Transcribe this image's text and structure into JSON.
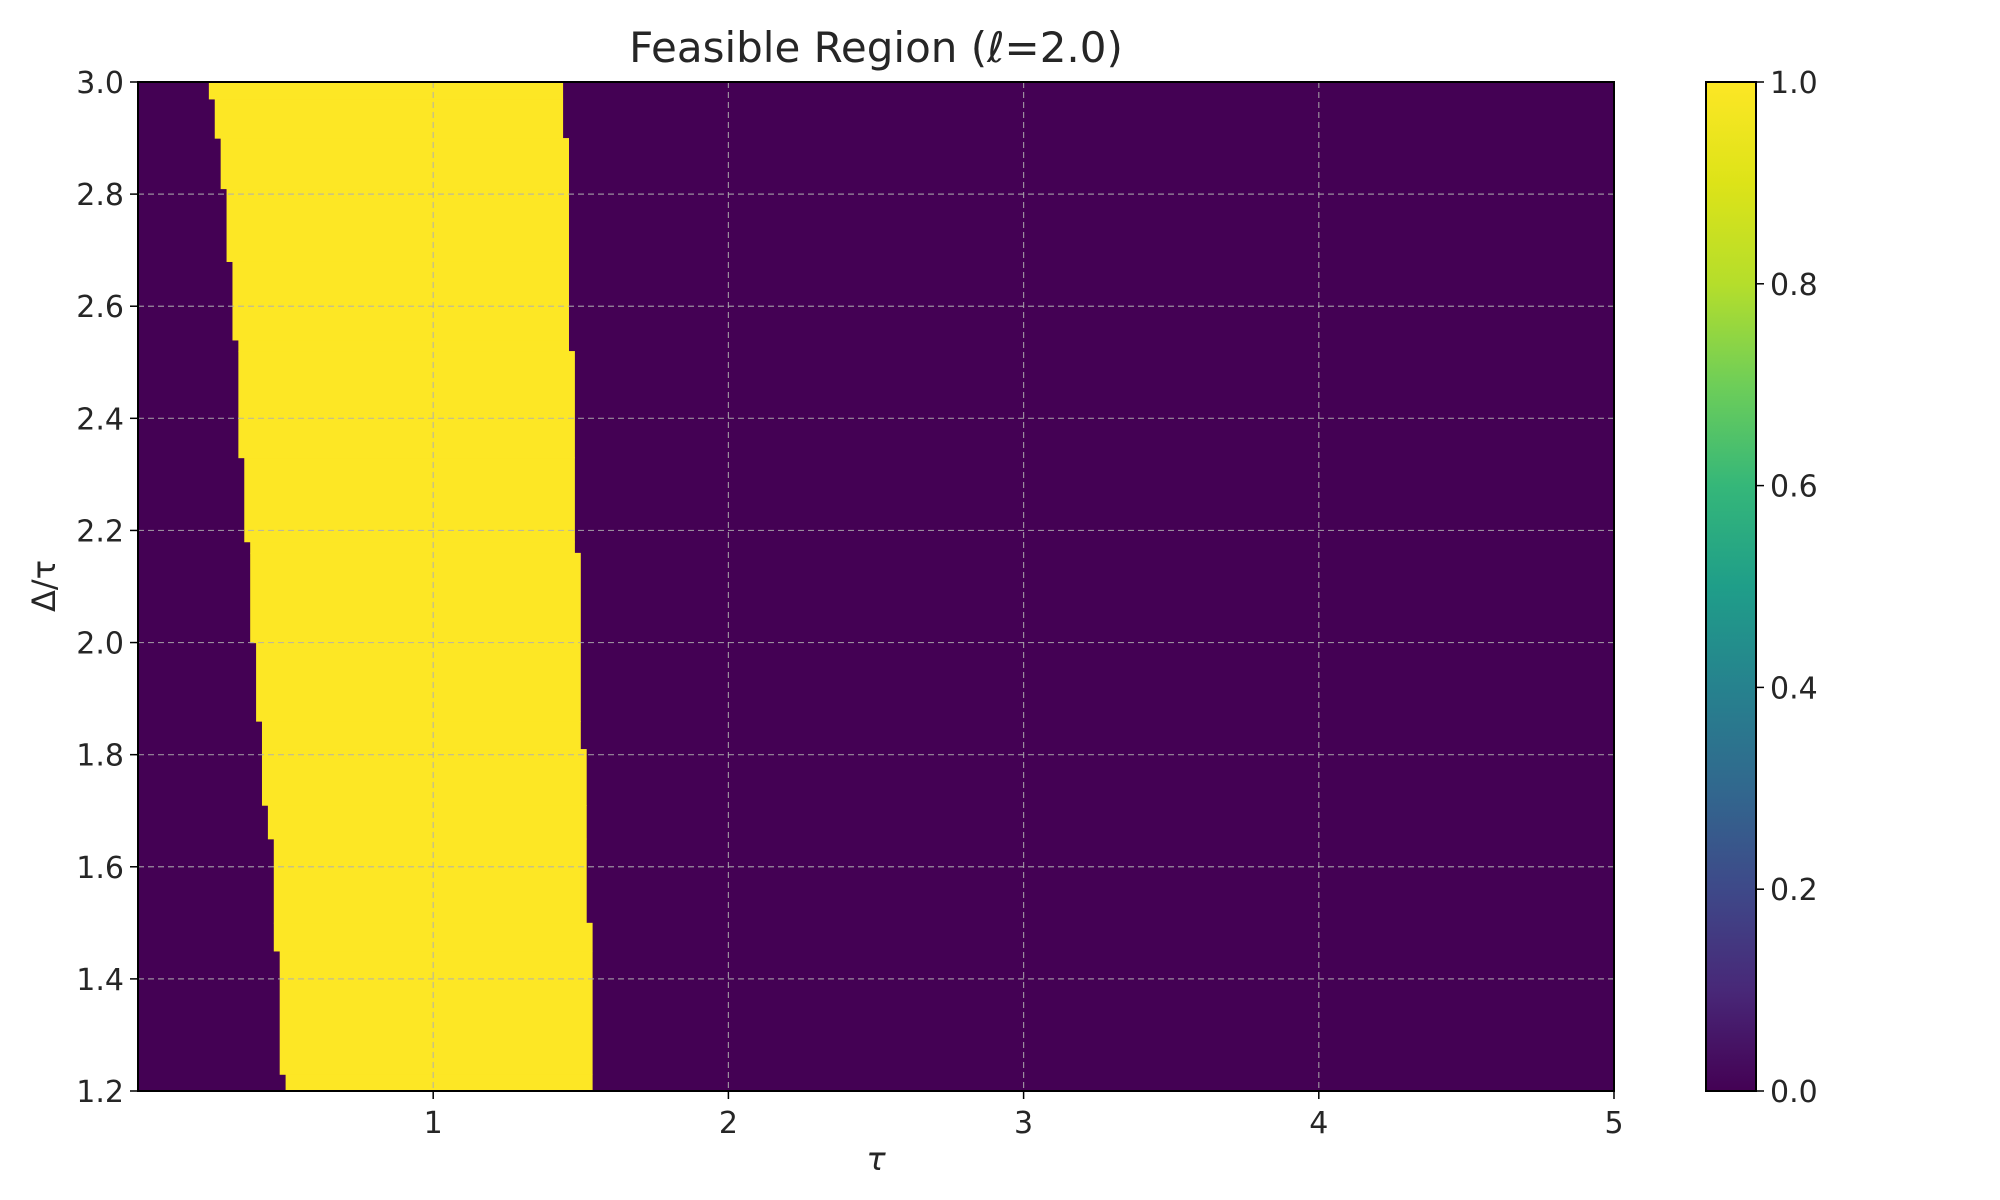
{
  "chart_data": {
    "type": "heatmap",
    "title": "Feasible Region (ℓ=2.0)",
    "xlabel": "τ",
    "ylabel": "Δ/τ",
    "xlim": [
      0,
      5
    ],
    "ylim": [
      1.2,
      3.0
    ],
    "xticks": [
      1,
      2,
      3,
      4,
      5
    ],
    "xtick_labels": [
      "1",
      "2",
      "3",
      "4",
      "5"
    ],
    "yticks": [
      1.2,
      1.4,
      1.6,
      1.8,
      2.0,
      2.2,
      2.4,
      2.6,
      2.8,
      3.0
    ],
    "ytick_labels": [
      "1.2",
      "1.4",
      "1.6",
      "1.8",
      "2.0",
      "2.2",
      "2.4",
      "2.6",
      "2.8",
      "3.0"
    ],
    "grid": true,
    "colormap": "viridis",
    "colorbar": {
      "range": [
        0.0,
        1.0
      ],
      "ticks": [
        0.0,
        0.2,
        0.4,
        0.6,
        0.8,
        1.0
      ],
      "tick_labels": [
        "0.0",
        "0.2",
        "0.4",
        "0.6",
        "0.8",
        "1.0"
      ]
    },
    "colors": {
      "infeasible": "#440154",
      "feasible": "#fde725"
    },
    "feasible_band": [
      {
        "ratio_range": [
          1.2,
          1.23
        ],
        "tau_range": [
          0.5,
          1.54
        ]
      },
      {
        "ratio_range": [
          1.23,
          1.45
        ],
        "tau_range": [
          0.48,
          1.54
        ]
      },
      {
        "ratio_range": [
          1.45,
          1.5
        ],
        "tau_range": [
          0.46,
          1.54
        ]
      },
      {
        "ratio_range": [
          1.5,
          1.65
        ],
        "tau_range": [
          0.46,
          1.52
        ]
      },
      {
        "ratio_range": [
          1.65,
          1.71
        ],
        "tau_range": [
          0.44,
          1.52
        ]
      },
      {
        "ratio_range": [
          1.71,
          1.81
        ],
        "tau_range": [
          0.42,
          1.52
        ]
      },
      {
        "ratio_range": [
          1.81,
          1.86
        ],
        "tau_range": [
          0.42,
          1.5
        ]
      },
      {
        "ratio_range": [
          1.86,
          2.0
        ],
        "tau_range": [
          0.4,
          1.5
        ]
      },
      {
        "ratio_range": [
          2.0,
          2.16
        ],
        "tau_range": [
          0.38,
          1.5
        ]
      },
      {
        "ratio_range": [
          2.16,
          2.18
        ],
        "tau_range": [
          0.38,
          1.48
        ]
      },
      {
        "ratio_range": [
          2.18,
          2.33
        ],
        "tau_range": [
          0.36,
          1.48
        ]
      },
      {
        "ratio_range": [
          2.33,
          2.52
        ],
        "tau_range": [
          0.34,
          1.48
        ]
      },
      {
        "ratio_range": [
          2.52,
          2.54
        ],
        "tau_range": [
          0.34,
          1.46
        ]
      },
      {
        "ratio_range": [
          2.54,
          2.68
        ],
        "tau_range": [
          0.32,
          1.46
        ]
      },
      {
        "ratio_range": [
          2.68,
          2.81
        ],
        "tau_range": [
          0.3,
          1.46
        ]
      },
      {
        "ratio_range": [
          2.81,
          2.9
        ],
        "tau_range": [
          0.28,
          1.46
        ]
      },
      {
        "ratio_range": [
          2.9,
          2.97
        ],
        "tau_range": [
          0.26,
          1.44
        ]
      },
      {
        "ratio_range": [
          2.97,
          3.0
        ],
        "tau_range": [
          0.24,
          1.44
        ]
      }
    ]
  }
}
